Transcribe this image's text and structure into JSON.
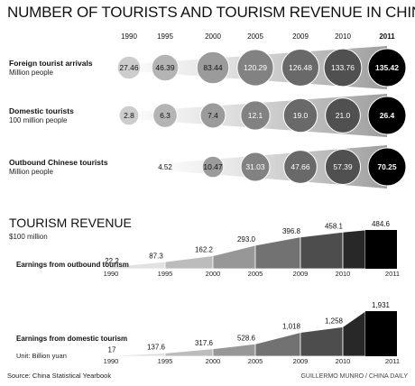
{
  "title": "NUMBER OF TOURISTS AND TOURISM REVENUE IN CHINA",
  "source": "Source: China Statistical Yearbook",
  "credit": "GUILLERMO MUNRO / CHINA DAILY",
  "colors": {
    "bubble_dark": "#000000",
    "bubble_mid": "#6e6e6e",
    "bubble_light": "#cfcfcf",
    "fan_gray": "#9a9a9a",
    "area_dark": "#000000",
    "area_light": "#dcdcdc"
  },
  "chart_data": [
    {
      "type": "bubble",
      "years": [
        "1990",
        "1995",
        "2000",
        "2005",
        "2009",
        "2010",
        "2011"
      ],
      "rows": [
        {
          "label": "Foreign tourist arrivals",
          "unit": "Million people",
          "values": [
            27.46,
            46.39,
            83.44,
            120.29,
            126.48,
            133.76,
            135.42
          ],
          "value_labels": [
            "27.46",
            "46.39",
            "83.44",
            "120.29",
            "126.48",
            "133.76",
            "135.42"
          ]
        },
        {
          "label": "Domestic tourists",
          "unit": "100 million people",
          "values": [
            2.8,
            6.3,
            7.4,
            12.1,
            19.0,
            21.0,
            26.4
          ],
          "value_labels": [
            "2.8",
            "6.3",
            "7.4",
            "12.1",
            "19.0",
            "21.0",
            "26.4"
          ]
        },
        {
          "label": "Outbound Chinese tourists",
          "unit": "Million people",
          "values": [
            null,
            4.52,
            10.47,
            31.03,
            47.66,
            57.39,
            70.25
          ],
          "value_labels": [
            "",
            "4.52",
            "10.47",
            "31.03",
            "47.66",
            "57.39",
            "70.25"
          ]
        }
      ]
    },
    {
      "type": "area",
      "section_title": "TOURISM REVENUE",
      "unit": "$100 million",
      "label": "Earnings from outbound tourism",
      "x": [
        "1990",
        "1995",
        "2000",
        "2005",
        "2009",
        "2010",
        "2011"
      ],
      "values": [
        22.2,
        87.3,
        162.2,
        293.0,
        396.8,
        458.1,
        484.6
      ],
      "value_labels": [
        "22.2",
        "87.3",
        "162.2",
        "293.0",
        "396.8",
        "458.1",
        "484.6"
      ]
    },
    {
      "type": "area",
      "label": "Earnings from domestic tourism",
      "unit": "Unit: Billion yuan",
      "x": [
        "1990",
        "1995",
        "2000",
        "2005",
        "2009",
        "2010",
        "2011"
      ],
      "values": [
        17,
        137.6,
        317.6,
        528.6,
        1018,
        1258,
        1931
      ],
      "value_labels": [
        "17",
        "137.6",
        "317.6",
        "528.6",
        "1,018",
        "1,258",
        "1,931"
      ]
    }
  ]
}
